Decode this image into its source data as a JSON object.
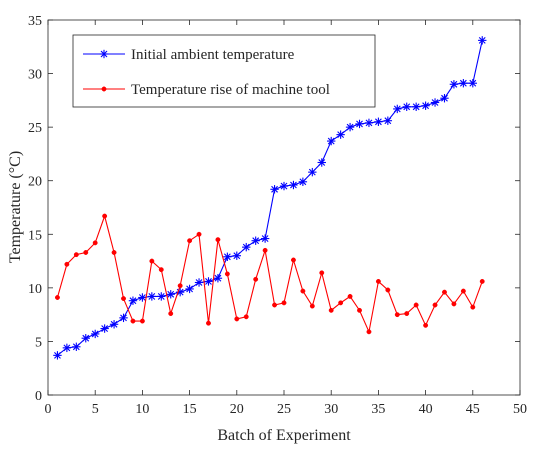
{
  "chart_data": {
    "type": "line",
    "xlabel": "Batch of Experiment",
    "ylabel": "Temperature (°C)",
    "xlim": [
      0,
      50
    ],
    "ylim": [
      0,
      35
    ],
    "xticks": [
      0,
      5,
      10,
      15,
      20,
      25,
      30,
      35,
      40,
      45,
      50
    ],
    "yticks": [
      0,
      5,
      10,
      15,
      20,
      25,
      30,
      35
    ],
    "grid": false,
    "legend_position": "top-left",
    "x": [
      1,
      2,
      3,
      4,
      5,
      6,
      7,
      8,
      9,
      10,
      11,
      12,
      13,
      14,
      15,
      16,
      17,
      18,
      19,
      20,
      21,
      22,
      23,
      24,
      25,
      26,
      27,
      28,
      29,
      30,
      31,
      32,
      33,
      34,
      35,
      36,
      37,
      38,
      39,
      40,
      41,
      42,
      43,
      44,
      45,
      46
    ],
    "series": [
      {
        "name": "Initial ambient temperature",
        "color": "#0000ff",
        "marker": "asterisk",
        "values": [
          3.7,
          4.4,
          4.5,
          5.3,
          5.7,
          6.2,
          6.6,
          7.2,
          8.8,
          9.1,
          9.2,
          9.2,
          9.4,
          9.6,
          9.9,
          10.5,
          10.6,
          10.9,
          12.9,
          13.0,
          13.8,
          14.4,
          14.6,
          19.2,
          19.5,
          19.6,
          19.9,
          20.8,
          21.7,
          23.7,
          24.3,
          25.0,
          25.3,
          25.4,
          25.5,
          25.6,
          26.7,
          26.9,
          26.9,
          27.0,
          27.3,
          27.7,
          29.0,
          29.1,
          29.1,
          33.1
        ]
      },
      {
        "name": "Temperature rise of machine tool",
        "color": "#ff0000",
        "marker": "dot",
        "values": [
          9.1,
          12.2,
          13.1,
          13.3,
          14.2,
          16.7,
          13.3,
          9.0,
          6.9,
          6.9,
          12.5,
          11.7,
          7.6,
          10.2,
          14.4,
          15.0,
          6.7,
          14.5,
          11.3,
          7.1,
          7.3,
          10.8,
          13.5,
          8.4,
          8.6,
          12.6,
          9.7,
          8.3,
          11.4,
          7.9,
          8.6,
          9.2,
          7.9,
          5.9,
          10.6,
          9.8,
          7.5,
          7.6,
          8.4,
          6.5,
          8.4,
          9.6,
          8.5,
          9.7,
          8.2,
          10.6
        ]
      }
    ]
  }
}
